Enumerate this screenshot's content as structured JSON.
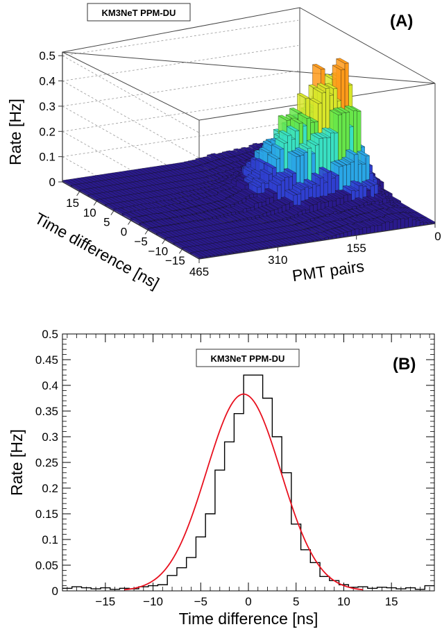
{
  "chart_data": [
    {
      "panel_label": "(A)",
      "type": "3d-lego-histogram",
      "legend": "KM3NeT PPM-DU",
      "xlabel": "PMT pairs",
      "ylabel": "Time difference [ns]",
      "zlabel": "Rate [Hz]",
      "x_ticks": [
        "465",
        "310",
        "155",
        "0"
      ],
      "y_ticks": [
        "15",
        "10",
        "5",
        "0",
        "−5",
        "−10",
        "−15"
      ],
      "z_ticks": [
        "0",
        "0.1",
        "0.2",
        "0.3",
        "0.4",
        "0.5"
      ],
      "xlim": [
        0,
        465
      ],
      "ylim": [
        -20,
        20
      ],
      "zlim": [
        0,
        0.55
      ],
      "grid": true,
      "colormap": [
        "#2a1a8c",
        "#2f3fd0",
        "#2aa6e6",
        "#39e0c2",
        "#66e64a",
        "#d8e62a",
        "#ff9a1a",
        "#e01818"
      ],
      "profile_along_x": [
        {
          "x": 0,
          "z": 0.05
        },
        {
          "x": 20,
          "z": 0.12
        },
        {
          "x": 40,
          "z": 0.3
        },
        {
          "x": 50,
          "z": 0.5
        },
        {
          "x": 65,
          "z": 0.45
        },
        {
          "x": 80,
          "z": 0.47
        },
        {
          "x": 100,
          "z": 0.38
        },
        {
          "x": 120,
          "z": 0.34
        },
        {
          "x": 140,
          "z": 0.3
        },
        {
          "x": 160,
          "z": 0.28
        },
        {
          "x": 180,
          "z": 0.22
        },
        {
          "x": 200,
          "z": 0.14
        },
        {
          "x": 230,
          "z": 0.07
        },
        {
          "x": 280,
          "z": 0.03
        },
        {
          "x": 350,
          "z": 0.015
        },
        {
          "x": 465,
          "z": 0.01
        }
      ]
    },
    {
      "panel_label": "(B)",
      "type": "histogram",
      "legend": "KM3NeT PPM-DU",
      "xlabel": "Time difference [ns]",
      "ylabel": "Rate [Hz]",
      "xlim": [
        -19.5,
        19.5
      ],
      "ylim": [
        0,
        0.5
      ],
      "x_ticks": [
        "−15",
        "−10",
        "−5",
        "0",
        "5",
        "10",
        "15"
      ],
      "y_ticks": [
        "0",
        "0.05",
        "0.1",
        "0.15",
        "0.2",
        "0.25",
        "0.3",
        "0.35",
        "0.4",
        "0.45",
        "0.5"
      ],
      "bin_edges": [
        -19.5,
        -18.5,
        -17.5,
        -16.5,
        -15.5,
        -14.5,
        -13.5,
        -12.5,
        -11.5,
        -10.5,
        -9.5,
        -8.5,
        -7.5,
        -6.5,
        -5.5,
        -4.5,
        -3.5,
        -2.5,
        -1.5,
        -0.5,
        0.5,
        1.5,
        2.5,
        3.5,
        4.5,
        5.5,
        6.5,
        7.5,
        8.5,
        9.5,
        10.5,
        11.5,
        12.5,
        13.5,
        14.5,
        15.5,
        16.5,
        17.5,
        18.5,
        19.5
      ],
      "values": [
        0.005,
        0.008,
        0.006,
        0.004,
        0.006,
        0.003,
        0.005,
        0.004,
        0.008,
        0.01,
        0.012,
        0.03,
        0.045,
        0.065,
        0.105,
        0.15,
        0.235,
        0.29,
        0.345,
        0.42,
        0.42,
        0.375,
        0.3,
        0.23,
        0.13,
        0.08,
        0.055,
        0.028,
        0.02,
        0.012,
        0.007,
        0.008,
        0.005,
        0.007,
        0.006,
        0.004,
        0.006,
        0.003,
        0.01
      ],
      "histogram_color": "#000000",
      "fit": {
        "type": "gaussian",
        "amplitude": 0.383,
        "mean": -0.5,
        "sigma": 3.9,
        "color": "#e8101e"
      }
    }
  ]
}
